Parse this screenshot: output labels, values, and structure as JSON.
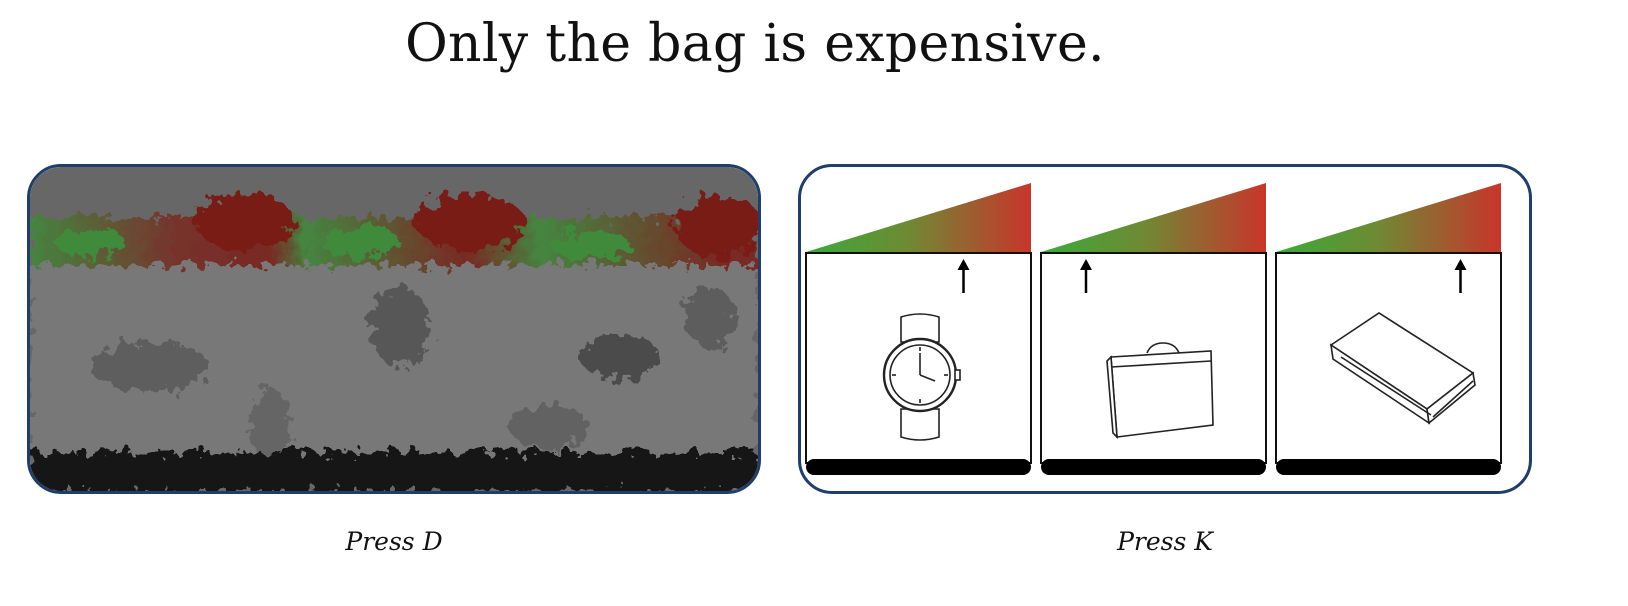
{
  "sentence": "Only the bag is expensive.",
  "left_option": {
    "caption": "Press D",
    "image": "scrambled-noise-image"
  },
  "right_option": {
    "caption": "Press K",
    "items": [
      {
        "icon": "wristwatch-icon",
        "price_marker": 0.7
      },
      {
        "icon": "briefcase-icon",
        "price_marker": 0.2
      },
      {
        "icon": "book-icon",
        "price_marker": 0.82
      }
    ]
  },
  "colors": {
    "panel_border": "#1f3e6b",
    "cheap": "#3aaa3a",
    "expensive": "#c8352b",
    "noise_background": "#676767"
  }
}
